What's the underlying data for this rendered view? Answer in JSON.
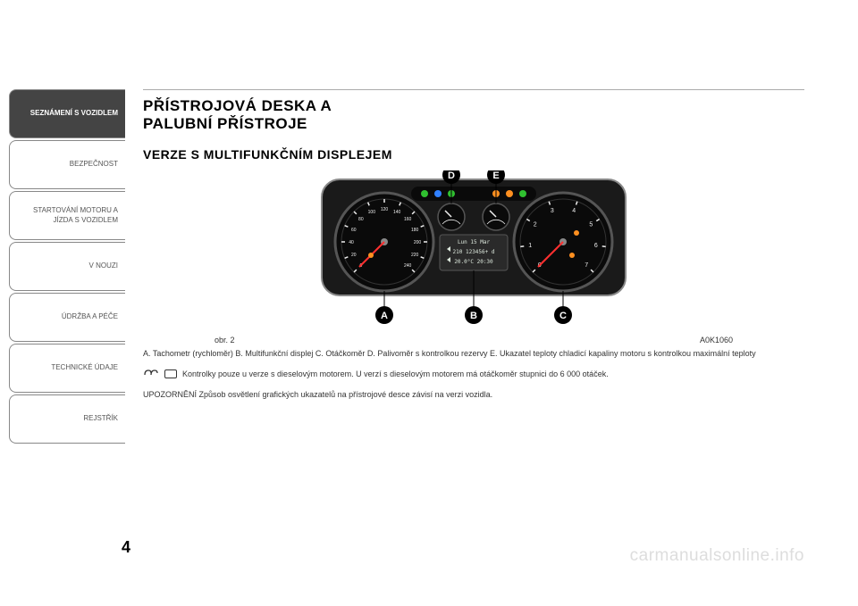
{
  "sidebar": {
    "tabs": [
      {
        "label": "SEZNÁMENÍ S VOZIDLEM",
        "active": true
      },
      {
        "label": "BEZPEČNOST",
        "active": false
      },
      {
        "label": "STARTOVÁNÍ MOTORU A JÍZDA S VOZIDLEM",
        "active": false
      },
      {
        "label": "V NOUZI",
        "active": false
      },
      {
        "label": "ÚDRŽBA A PÉČE",
        "active": false
      },
      {
        "label": "TECHNICKÉ ÚDAJE",
        "active": false
      },
      {
        "label": "REJSTŘÍK",
        "active": false
      }
    ]
  },
  "page_number": "4",
  "content": {
    "title_line1": "PŘÍSTROJOVÁ DESKA A",
    "title_line2": "PALUBNÍ PŘÍSTROJE",
    "subtitle": "VERZE S MULTIFUNKČNÍM DISPLEJEM",
    "figure_label": "obr. 2",
    "figure_code": "A0K1060",
    "description": "A. Tachometr (rychloměr) B. Multifunkční displej C. Otáčkoměr D. Palivoměr s kontrolkou rezervy E. Ukazatel teploty chladicí kapaliny motoru s kontrolkou maximální teploty",
    "diesel_note": "Kontrolky pouze u verze s dieselovým motorem. U verzí s dieselovým motorem má otáčkoměr stupnici do 6 000 otáček.",
    "warning": "UPOZORNĚNÍ Způsob osvětlení grafických ukazatelů na přístrojové desce závisí na verzi vozidla."
  },
  "dashboard": {
    "callouts": [
      "A",
      "B",
      "C",
      "D",
      "E"
    ],
    "display_line1": "Lun 15 Mar",
    "display_line2": "210 123456+ d",
    "display_line3": "20.0°C 20:30",
    "speedo": {
      "ticks": [
        "0",
        "20",
        "40",
        "60",
        "80",
        "100",
        "120",
        "140",
        "160",
        "180",
        "200",
        "220",
        "240"
      ],
      "needle_angle": -135
    },
    "tacho": {
      "ticks": [
        "0",
        "1",
        "2",
        "3",
        "4",
        "5",
        "6",
        "7"
      ],
      "needle_angle": -135
    },
    "colors": {
      "cluster_bg": "#1a1a1a",
      "gauge_bg": "#0a0a0a",
      "gauge_ring": "#555555",
      "tick_color": "#eeeeee",
      "needle_color": "#ff3030",
      "display_bg": "#2a2a2a",
      "display_text": "#dde8dd",
      "callout_bg": "#000000",
      "callout_text": "#ffffff",
      "warning_amber": "#ff9020",
      "warning_blue": "#3080ff",
      "warning_green": "#30c030"
    }
  },
  "watermark": "carmanualsonline.info"
}
